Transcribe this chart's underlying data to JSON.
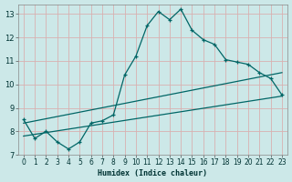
{
  "xlabel": "Humidex (Indice chaleur)",
  "bg_color": "#cce8e8",
  "grid_color": "#d9b0b0",
  "line_color": "#006666",
  "xlim": [
    -0.5,
    23.5
  ],
  "ylim": [
    7,
    13.4
  ],
  "xticks": [
    0,
    1,
    2,
    3,
    4,
    5,
    6,
    7,
    8,
    9,
    10,
    11,
    12,
    13,
    14,
    15,
    16,
    17,
    18,
    19,
    20,
    21,
    22,
    23
  ],
  "yticks": [
    7,
    8,
    9,
    10,
    11,
    12,
    13
  ],
  "curve1_x": [
    0,
    1,
    2,
    3,
    4,
    5,
    6,
    7,
    8,
    9,
    10,
    11,
    12,
    13,
    14,
    15,
    16,
    17,
    18,
    19,
    20,
    21,
    22,
    23
  ],
  "curve1_y": [
    8.5,
    7.7,
    8.0,
    7.55,
    7.25,
    7.55,
    8.35,
    8.45,
    8.7,
    10.4,
    11.2,
    12.5,
    13.1,
    12.75,
    13.2,
    12.3,
    11.9,
    11.7,
    11.05,
    10.95,
    10.85,
    10.5,
    10.25,
    9.55
  ],
  "curve2_x": [
    0,
    23
  ],
  "curve2_y": [
    8.35,
    10.5
  ],
  "curve3_x": [
    0,
    23
  ],
  "curve3_y": [
    7.8,
    9.5
  ]
}
